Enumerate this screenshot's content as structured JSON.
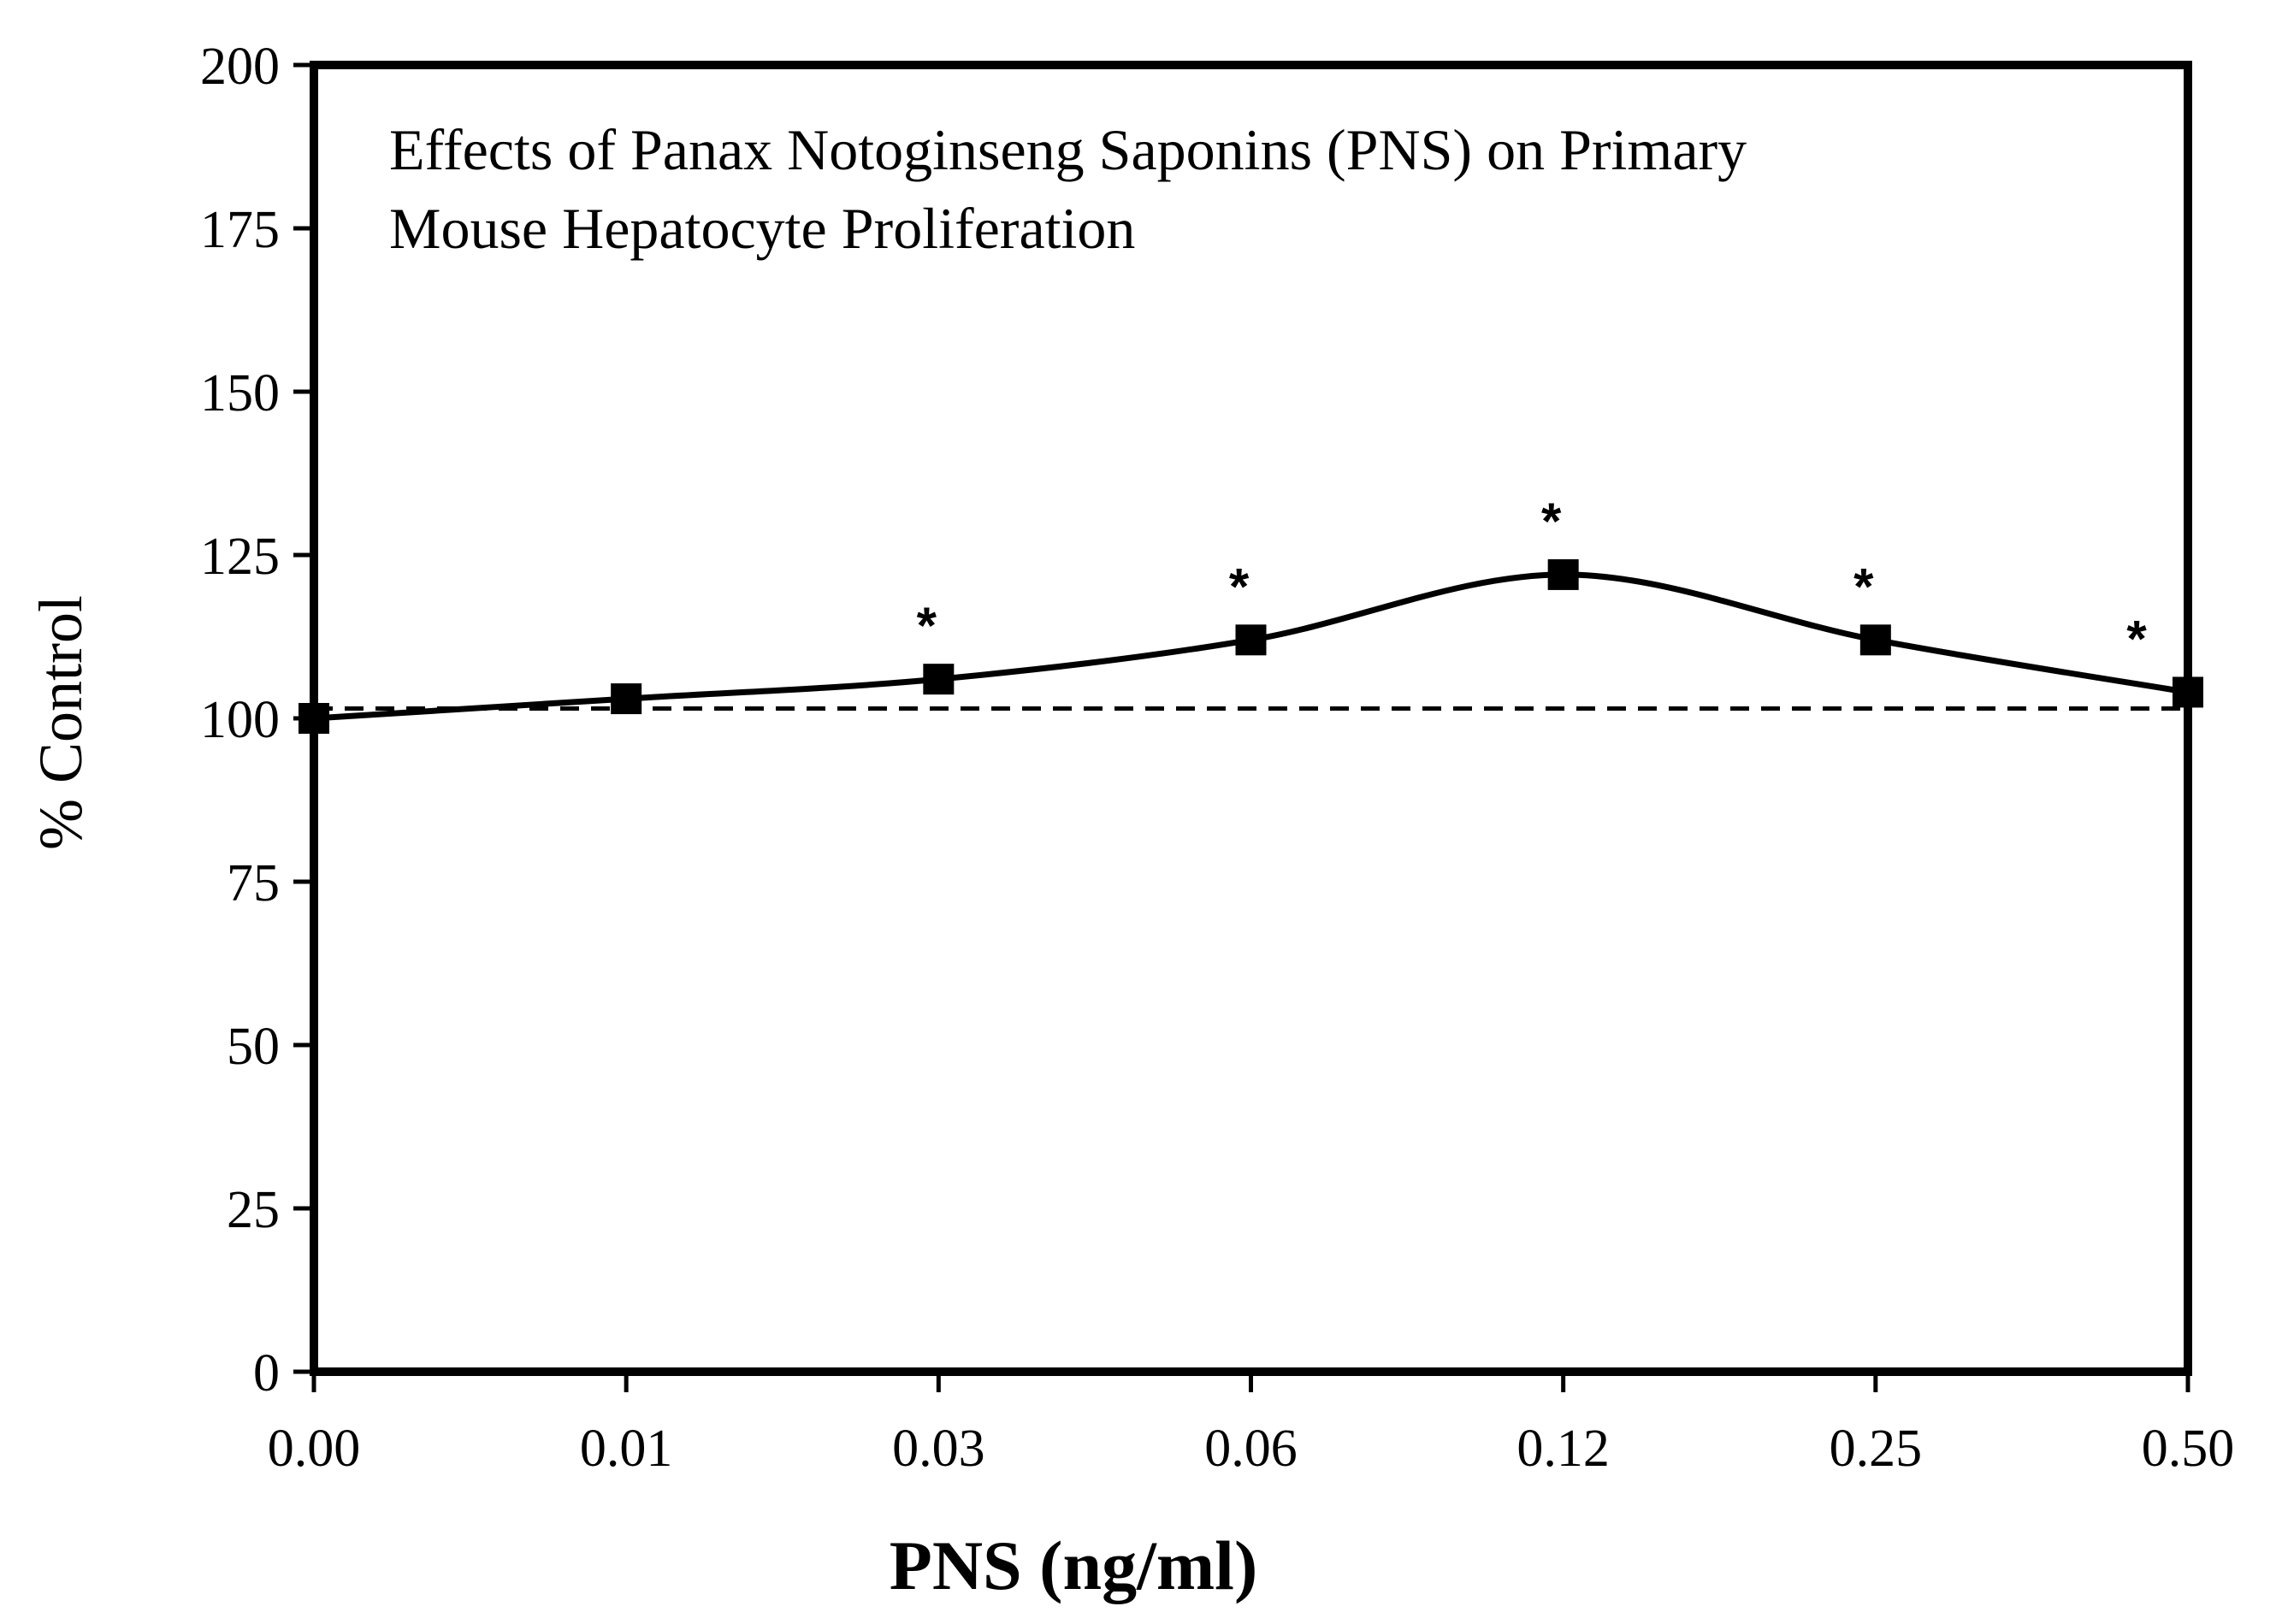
{
  "chart_data": {
    "type": "line",
    "title_lines": [
      "Effects of Panax Notoginseng Saponins (PNS) on Primary",
      "Mouse Hepatocyte Proliferation"
    ],
    "xlabel": "PNS (ng/ml)",
    "ylabel": "% Control",
    "categories": [
      "0.00",
      "0.01",
      "0.03",
      "0.06",
      "0.12",
      "0.25",
      "0.50"
    ],
    "ylim": [
      0,
      200
    ],
    "yticks": [
      0,
      25,
      50,
      75,
      100,
      125,
      150,
      175,
      200
    ],
    "series": [
      {
        "name": "PNS",
        "values": [
          100,
          103,
          106,
          112,
          122,
          112,
          104
        ],
        "marker": "square",
        "significance": [
          "",
          "",
          "*",
          "*",
          "*",
          "*",
          "*"
        ]
      }
    ],
    "reference_line": {
      "value": 101.5,
      "style": "dashed"
    },
    "grid": false,
    "legend": "none",
    "colors": {
      "line": "#000000",
      "background": "#ffffff"
    }
  }
}
